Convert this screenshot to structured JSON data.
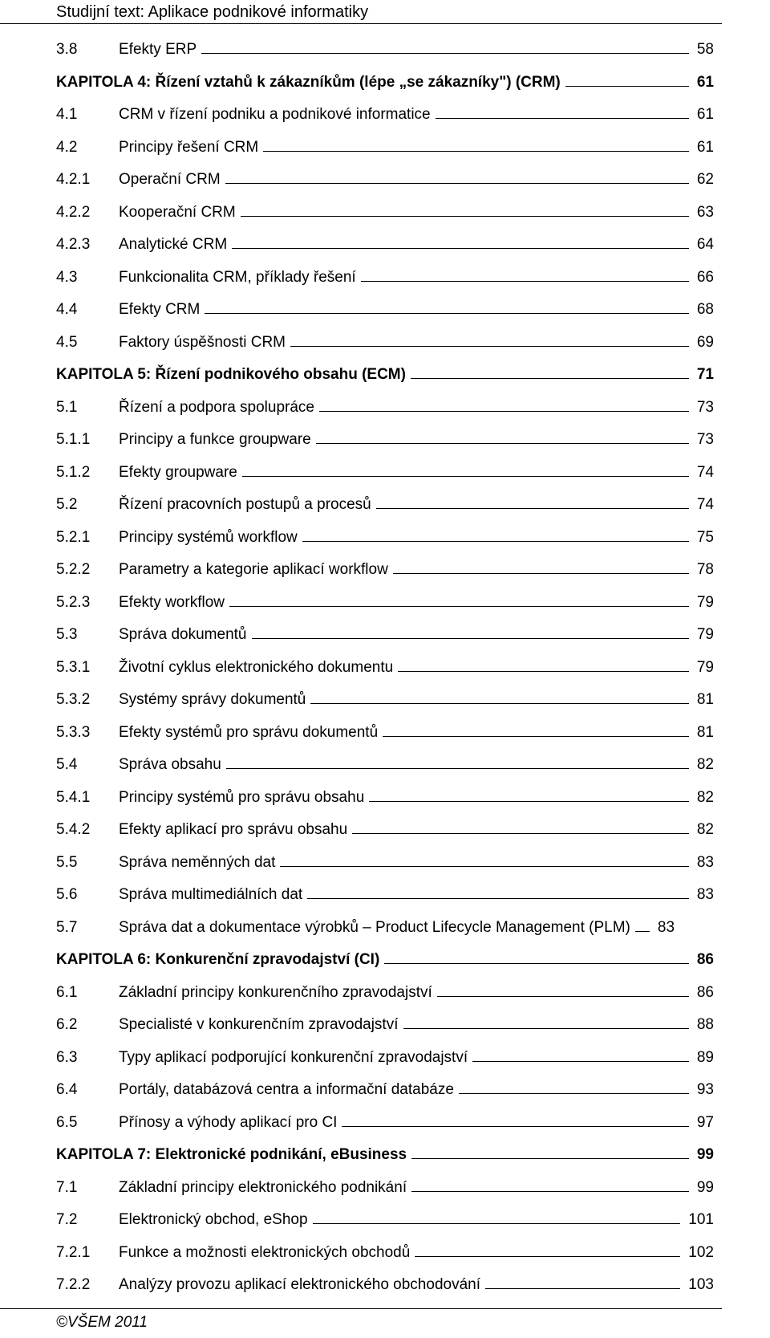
{
  "header": "Studijní text: Aplikace podnikové informatiky",
  "footer": "©VŠEM 2011",
  "entries": [
    {
      "num": "3.8",
      "title": "Efekty ERP",
      "page": "58",
      "level": 1,
      "bold": false
    },
    {
      "num": "",
      "title": "KAPITOLA 4: Řízení vztahů k zákazníkům (lépe „se zákazníky\") (CRM)",
      "page": "61",
      "level": 0,
      "bold": true
    },
    {
      "num": "4.1",
      "title": "CRM v řízení podniku a podnikové informatice",
      "page": "61",
      "level": 1,
      "bold": false
    },
    {
      "num": "4.2",
      "title": "Principy řešení CRM",
      "page": "61",
      "level": 1,
      "bold": false
    },
    {
      "num": "4.2.1",
      "title": "Operační CRM",
      "page": "62",
      "level": 2,
      "bold": false
    },
    {
      "num": "4.2.2",
      "title": "Kooperační CRM",
      "page": "63",
      "level": 2,
      "bold": false
    },
    {
      "num": "4.2.3",
      "title": "Analytické CRM",
      "page": "64",
      "level": 2,
      "bold": false
    },
    {
      "num": "4.3",
      "title": "Funkcionalita CRM, příklady řešení",
      "page": "66",
      "level": 1,
      "bold": false
    },
    {
      "num": "4.4",
      "title": "Efekty CRM",
      "page": "68",
      "level": 1,
      "bold": false
    },
    {
      "num": "4.5",
      "title": "Faktory úspěšnosti CRM",
      "page": "69",
      "level": 1,
      "bold": false
    },
    {
      "num": "",
      "title": "KAPITOLA 5: Řízení podnikového obsahu (ECM)",
      "page": "71",
      "level": 0,
      "bold": true
    },
    {
      "num": "5.1",
      "title": "Řízení a podpora spolupráce",
      "page": "73",
      "level": 1,
      "bold": false
    },
    {
      "num": "5.1.1",
      "title": "Principy a funkce groupware",
      "page": "73",
      "level": 2,
      "bold": false
    },
    {
      "num": "5.1.2",
      "title": "Efekty groupware",
      "page": "74",
      "level": 2,
      "bold": false
    },
    {
      "num": "5.2",
      "title": "Řízení pracovních postupů a procesů",
      "page": "74",
      "level": 1,
      "bold": false
    },
    {
      "num": "5.2.1",
      "title": "Principy systémů workflow",
      "page": "75",
      "level": 2,
      "bold": false
    },
    {
      "num": "5.2.2",
      "title": "Parametry a kategorie aplikací workflow",
      "page": "78",
      "level": 2,
      "bold": false
    },
    {
      "num": "5.2.3",
      "title": "Efekty workflow",
      "page": "79",
      "level": 2,
      "bold": false
    },
    {
      "num": "5.3",
      "title": "Správa dokumentů",
      "page": "79",
      "level": 1,
      "bold": false
    },
    {
      "num": "5.3.1",
      "title": "Životní cyklus elektronického dokumentu",
      "page": "79",
      "level": 2,
      "bold": false
    },
    {
      "num": "5.3.2",
      "title": "Systémy správy dokumentů",
      "page": "81",
      "level": 2,
      "bold": false
    },
    {
      "num": "5.3.3",
      "title": "Efekty systémů pro správu dokumentů",
      "page": "81",
      "level": 2,
      "bold": false
    },
    {
      "num": "5.4",
      "title": "Správa obsahu",
      "page": "82",
      "level": 1,
      "bold": false
    },
    {
      "num": "5.4.1",
      "title": "Principy systémů pro správu obsahu",
      "page": "82",
      "level": 2,
      "bold": false
    },
    {
      "num": "5.4.2",
      "title": "Efekty aplikací pro správu obsahu",
      "page": "82",
      "level": 2,
      "bold": false
    },
    {
      "num": "5.5",
      "title": "Správa neměnných dat",
      "page": "83",
      "level": 1,
      "bold": false
    },
    {
      "num": "5.6",
      "title": "Správa multimediálních dat",
      "page": "83",
      "level": 1,
      "bold": false
    },
    {
      "num": "5.7",
      "title": "Správa dat a dokumentace výrobků – Product Lifecycle Management (PLM)",
      "page": "83",
      "level": 1,
      "bold": false,
      "short_leader": true
    },
    {
      "num": "",
      "title": "KAPITOLA 6: Konkurenční zpravodajství (CI)",
      "page": "86",
      "level": 0,
      "bold": true
    },
    {
      "num": "6.1",
      "title": "Základní principy konkurenčního zpravodajství",
      "page": "86",
      "level": 1,
      "bold": false
    },
    {
      "num": "6.2",
      "title": "Specialisté v konkurenčním zpravodajství",
      "page": "88",
      "level": 1,
      "bold": false
    },
    {
      "num": "6.3",
      "title": "Typy aplikací podporující konkurenční zpravodajství",
      "page": "89",
      "level": 1,
      "bold": false
    },
    {
      "num": "6.4",
      "title": "Portály, databázová centra a informační databáze",
      "page": "93",
      "level": 1,
      "bold": false
    },
    {
      "num": "6.5",
      "title": "Přínosy a výhody aplikací pro CI",
      "page": "97",
      "level": 1,
      "bold": false
    },
    {
      "num": "",
      "title": "KAPITOLA 7: Elektronické podnikání, eBusiness",
      "page": "99",
      "level": 0,
      "bold": true
    },
    {
      "num": "7.1",
      "title": "Základní principy elektronického podnikání",
      "page": "99",
      "level": 1,
      "bold": false
    },
    {
      "num": "7.2",
      "title": "Elektronický obchod, eShop",
      "page": "101",
      "level": 1,
      "bold": false
    },
    {
      "num": "7.2.1",
      "title": "Funkce a možnosti elektronických obchodů",
      "page": "102",
      "level": 2,
      "bold": false
    },
    {
      "num": "7.2.2",
      "title": "Analýzy provozu aplikací elektronického obchodování",
      "page": "103",
      "level": 2,
      "bold": false
    }
  ]
}
